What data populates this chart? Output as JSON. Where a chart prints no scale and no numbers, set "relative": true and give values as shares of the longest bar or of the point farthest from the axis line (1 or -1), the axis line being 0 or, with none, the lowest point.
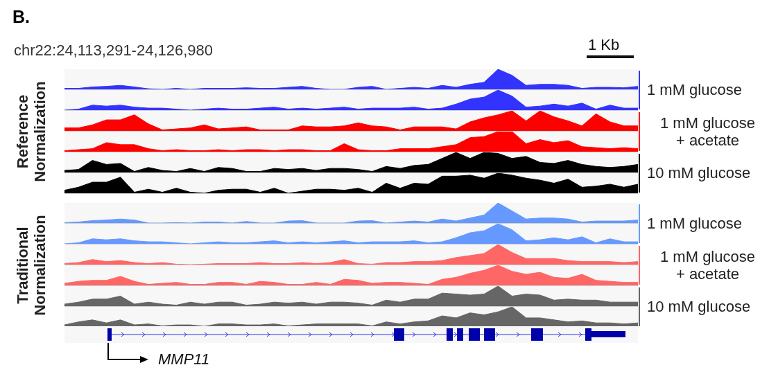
{
  "chart_data": [
    {
      "type": "area",
      "relative": true,
      "title": "B.",
      "subtitle": "chr22:24,113,291-24,126,980",
      "annotations": [
        "1 Kb"
      ],
      "ylabel": "Reference Normalization",
      "legend_title": "1 mM glucose",
      "categories": [
        null,
        null,
        null,
        null,
        null,
        null,
        null,
        null,
        null,
        null,
        null,
        null,
        null,
        null,
        null,
        null,
        null,
        null,
        null,
        null,
        null,
        null,
        null,
        null,
        null,
        null,
        null,
        null,
        null,
        null,
        null,
        null,
        null,
        null,
        null,
        null,
        null,
        null,
        null,
        null,
        null,
        null
      ],
      "series": [
        {
          "color": "#3333ff",
          "values": [
            0.05,
            0.05,
            0.12,
            0.15,
            0.2,
            0.12,
            0.03,
            0,
            0.05,
            0,
            0.05,
            0.05,
            0.05,
            0.08,
            0.05,
            0.05,
            0.1,
            0.15,
            0.05,
            0,
            0,
            0.1,
            0.15,
            0,
            0.05,
            0.1,
            0.05,
            0.2,
            0.1,
            0.25,
            0.35,
            1,
            0.7,
            0.2,
            0.25,
            0.25,
            0.2,
            0.05,
            0.1,
            0.1,
            0.08,
            0.15
          ]
        }
      ]
    },
    {
      "type": "area",
      "relative": true,
      "categories": [
        null,
        null,
        null,
        null,
        null,
        null,
        null,
        null,
        null,
        null,
        null,
        null,
        null,
        null,
        null,
        null,
        null,
        null,
        null,
        null,
        null,
        null,
        null,
        null,
        null,
        null,
        null,
        null,
        null,
        null,
        null,
        null,
        null,
        null,
        null,
        null,
        null,
        null,
        null,
        null,
        null,
        null
      ],
      "series": [
        {
          "color": "#3333ff",
          "values": [
            0,
            0.05,
            0.25,
            0.2,
            0.25,
            0.15,
            0.1,
            0.1,
            0.05,
            0,
            0.05,
            0.1,
            0.05,
            0.05,
            0.1,
            0.15,
            0.05,
            0.1,
            0.05,
            0.1,
            0.15,
            0.05,
            0.1,
            0.1,
            0.1,
            0.15,
            0.05,
            0.1,
            0.3,
            0.55,
            0.65,
            1,
            0.7,
            0.15,
            0.2,
            0.3,
            0.2,
            0.35,
            0.05,
            0.25,
            0.1,
            0.1
          ]
        }
      ]
    },
    {
      "type": "area",
      "relative": true,
      "legend_title": "1 mM glucose + acetate",
      "categories": [
        null,
        null,
        null,
        null,
        null,
        null,
        null,
        null,
        null,
        null,
        null,
        null,
        null,
        null,
        null,
        null,
        null,
        null,
        null,
        null,
        null,
        null,
        null,
        null,
        null,
        null,
        null,
        null,
        null,
        null,
        null,
        null,
        null,
        null,
        null,
        null,
        null,
        null,
        null,
        null,
        null,
        null
      ],
      "series": [
        {
          "color": "#ff0000",
          "values": [
            0.15,
            0.15,
            0.3,
            0.55,
            0.55,
            0.8,
            0.35,
            0.05,
            0.1,
            0.15,
            0.3,
            0.1,
            0.15,
            0.2,
            0.05,
            0.05,
            0.05,
            0.25,
            0.2,
            0.2,
            0.25,
            0.4,
            0.25,
            0.2,
            0.05,
            0.2,
            0.2,
            0.2,
            0.1,
            0.45,
            0.65,
            0.8,
            1,
            0.5,
            1,
            0.7,
            0.5,
            0.25,
            0.85,
            0.45,
            0.25,
            0.25
          ]
        }
      ]
    },
    {
      "type": "area",
      "relative": true,
      "categories": [
        null,
        null,
        null,
        null,
        null,
        null,
        null,
        null,
        null,
        null,
        null,
        null,
        null,
        null,
        null,
        null,
        null,
        null,
        null,
        null,
        null,
        null,
        null,
        null,
        null,
        null,
        null,
        null,
        null,
        null,
        null,
        null,
        null,
        null,
        null,
        null,
        null,
        null,
        null,
        null,
        null,
        null
      ],
      "series": [
        {
          "color": "#ff0000",
          "values": [
            0.05,
            0.1,
            0.15,
            0.45,
            0.35,
            0.35,
            0.15,
            0.05,
            0.1,
            0.05,
            0.05,
            0.1,
            0.05,
            0.1,
            0.1,
            0.05,
            0.1,
            0.1,
            0.05,
            0.05,
            0.4,
            0.1,
            0.05,
            0.05,
            0.15,
            0.15,
            0.15,
            0.25,
            0.35,
            0.7,
            0.75,
            1,
            1,
            0.4,
            0.6,
            0.45,
            0.55,
            0.25,
            0.2,
            0.15,
            0.2,
            0.15
          ]
        }
      ]
    },
    {
      "type": "area",
      "relative": true,
      "legend_title": "10 mM glucose",
      "categories": [
        null,
        null,
        null,
        null,
        null,
        null,
        null,
        null,
        null,
        null,
        null,
        null,
        null,
        null,
        null,
        null,
        null,
        null,
        null,
        null,
        null,
        null,
        null,
        null,
        null,
        null,
        null,
        null,
        null,
        null,
        null,
        null,
        null,
        null,
        null,
        null,
        null,
        null,
        null,
        null,
        null,
        null
      ],
      "series": [
        {
          "color": "#000000",
          "values": [
            0.1,
            0.15,
            0.6,
            0.4,
            0.45,
            0.05,
            0.25,
            0.1,
            0.05,
            0.2,
            0.05,
            0.25,
            0.2,
            0.05,
            0.05,
            0.2,
            0.15,
            0.2,
            0.1,
            0.2,
            0.2,
            0.15,
            0.05,
            0.3,
            0.2,
            0.35,
            0.4,
            0.7,
            1,
            0.7,
            1,
            0.95,
            0.7,
            0.8,
            0.5,
            0.45,
            0.6,
            0.4,
            0.3,
            0.25,
            0.3,
            0.4
          ]
        }
      ]
    },
    {
      "type": "area",
      "relative": true,
      "categories": [
        null,
        null,
        null,
        null,
        null,
        null,
        null,
        null,
        null,
        null,
        null,
        null,
        null,
        null,
        null,
        null,
        null,
        null,
        null,
        null,
        null,
        null,
        null,
        null,
        null,
        null,
        null,
        null,
        null,
        null,
        null,
        null,
        null,
        null,
        null,
        null,
        null,
        null,
        null,
        null,
        null,
        null
      ],
      "series": [
        {
          "color": "#000000",
          "values": [
            0.15,
            0.3,
            0.55,
            0.55,
            0.8,
            0.05,
            0.2,
            0.05,
            0.25,
            0.05,
            0,
            0.15,
            0.2,
            0.2,
            0.05,
            0.25,
            0,
            0.1,
            0.2,
            0.2,
            0.15,
            0.25,
            0.05,
            0.5,
            0.25,
            0.5,
            0.45,
            0.85,
            0.85,
            0.9,
            0.75,
            1,
            0.9,
            0.75,
            0.65,
            0.5,
            0.7,
            0.3,
            0.35,
            0.45,
            0.3,
            0.45
          ]
        }
      ]
    },
    {
      "type": "area",
      "relative": true,
      "ylabel": "Traditional Normalization",
      "legend_title": "1 mM glucose",
      "categories": [
        null,
        null,
        null,
        null,
        null,
        null,
        null,
        null,
        null,
        null,
        null,
        null,
        null,
        null,
        null,
        null,
        null,
        null,
        null,
        null,
        null,
        null,
        null,
        null,
        null,
        null,
        null,
        null,
        null,
        null,
        null,
        null,
        null,
        null,
        null,
        null,
        null,
        null,
        null,
        null,
        null,
        null
      ],
      "series": [
        {
          "color": "#6699ff",
          "values": [
            0.02,
            0.05,
            0.12,
            0.15,
            0.2,
            0.15,
            0,
            0,
            0.02,
            0,
            0.05,
            0.05,
            0,
            0.08,
            0,
            0,
            0.1,
            0.12,
            0,
            0,
            0,
            0.1,
            0.12,
            0,
            0.05,
            0.1,
            0.05,
            0.2,
            0.1,
            0.25,
            0.4,
            1,
            0.6,
            0.2,
            0.25,
            0.25,
            0.2,
            0.05,
            0.1,
            0.1,
            0.1,
            0.15
          ]
        }
      ]
    },
    {
      "type": "area",
      "relative": true,
      "categories": [
        null,
        null,
        null,
        null,
        null,
        null,
        null,
        null,
        null,
        null,
        null,
        null,
        null,
        null,
        null,
        null,
        null,
        null,
        null,
        null,
        null,
        null,
        null,
        null,
        null,
        null,
        null,
        null,
        null,
        null,
        null,
        null,
        null,
        null,
        null,
        null,
        null,
        null,
        null,
        null,
        null,
        null
      ],
      "series": [
        {
          "color": "#6699ff",
          "values": [
            0,
            0.05,
            0.25,
            0.2,
            0.25,
            0.15,
            0.1,
            0.1,
            0.05,
            0,
            0.05,
            0.1,
            0.05,
            0.05,
            0.1,
            0.15,
            0.05,
            0.1,
            0.05,
            0.1,
            0.15,
            0.05,
            0.1,
            0.1,
            0.1,
            0.15,
            0.05,
            0.1,
            0.3,
            0.55,
            0.65,
            1,
            0.7,
            0.15,
            0.2,
            0.3,
            0.2,
            0.35,
            0.05,
            0.25,
            0.1,
            0.1
          ]
        }
      ]
    },
    {
      "type": "area",
      "relative": true,
      "legend_title": "1 mM glucose + acetate",
      "categories": [
        null,
        null,
        null,
        null,
        null,
        null,
        null,
        null,
        null,
        null,
        null,
        null,
        null,
        null,
        null,
        null,
        null,
        null,
        null,
        null,
        null,
        null,
        null,
        null,
        null,
        null,
        null,
        null,
        null,
        null,
        null,
        null,
        null,
        null,
        null,
        null,
        null,
        null,
        null,
        null,
        null,
        null
      ],
      "series": [
        {
          "color": "#ff6666",
          "values": [
            0.05,
            0.1,
            0.25,
            0.15,
            0.2,
            0.1,
            0.05,
            0.1,
            0.02,
            0,
            0.02,
            0.05,
            0.05,
            0.05,
            0.1,
            0.05,
            0.05,
            0.1,
            0.05,
            0.1,
            0.25,
            0.05,
            0.02,
            0.1,
            0.1,
            0.15,
            0.15,
            0.2,
            0.35,
            0.45,
            0.55,
            1,
            0.6,
            0.3,
            0.3,
            0.3,
            0.2,
            0.15,
            0.15,
            0.15,
            0.1,
            0.15
          ]
        }
      ]
    },
    {
      "type": "area",
      "relative": true,
      "categories": [
        null,
        null,
        null,
        null,
        null,
        null,
        null,
        null,
        null,
        null,
        null,
        null,
        null,
        null,
        null,
        null,
        null,
        null,
        null,
        null,
        null,
        null,
        null,
        null,
        null,
        null,
        null,
        null,
        null,
        null,
        null,
        null,
        null,
        null,
        null,
        null,
        null,
        null,
        null,
        null,
        null,
        null
      ],
      "series": [
        {
          "color": "#ff6666",
          "values": [
            0.1,
            0.2,
            0.25,
            0.25,
            0.45,
            0.2,
            0.05,
            0.1,
            0.15,
            0.05,
            0.05,
            0.15,
            0.15,
            0.05,
            0.2,
            0.15,
            0.05,
            0.05,
            0.15,
            0.05,
            0.3,
            0.25,
            0.1,
            0.15,
            0.15,
            0.1,
            0.05,
            0.3,
            0.4,
            0.6,
            0.75,
            1,
            0.7,
            0.55,
            0.65,
            0.4,
            0.35,
            0.55,
            0.25,
            0.2,
            0.15,
            0.15
          ]
        }
      ]
    },
    {
      "type": "area",
      "relative": true,
      "legend_title": "10 mM glucose",
      "categories": [
        null,
        null,
        null,
        null,
        null,
        null,
        null,
        null,
        null,
        null,
        null,
        null,
        null,
        null,
        null,
        null,
        null,
        null,
        null,
        null,
        null,
        null,
        null,
        null,
        null,
        null,
        null,
        null,
        null,
        null,
        null,
        null,
        null,
        null,
        null,
        null,
        null,
        null,
        null,
        null,
        null,
        null
      ],
      "series": [
        {
          "color": "#666666",
          "values": [
            0.1,
            0.2,
            0.35,
            0.35,
            0.5,
            0.1,
            0.2,
            0.1,
            0.05,
            0.2,
            0.1,
            0.2,
            0.2,
            0.05,
            0.1,
            0.2,
            0.15,
            0.2,
            0.1,
            0.2,
            0.2,
            0.15,
            0.05,
            0.3,
            0.2,
            0.35,
            0.35,
            0.65,
            0.6,
            0.55,
            0.6,
            1,
            0.5,
            0.6,
            0.55,
            0.3,
            0.35,
            0.3,
            0.3,
            0.2,
            0.2,
            0.2
          ]
        }
      ]
    },
    {
      "type": "area",
      "relative": true,
      "annotations": [
        "MMP11"
      ],
      "categories": [
        null,
        null,
        null,
        null,
        null,
        null,
        null,
        null,
        null,
        null,
        null,
        null,
        null,
        null,
        null,
        null,
        null,
        null,
        null,
        null,
        null,
        null,
        null,
        null,
        null,
        null,
        null,
        null,
        null,
        null,
        null,
        null,
        null,
        null,
        null,
        null,
        null,
        null,
        null,
        null,
        null,
        null
      ],
      "series": [
        {
          "color": "#666666",
          "values": [
            0.1,
            0.25,
            0.35,
            0.2,
            0.35,
            0.1,
            0.15,
            0.05,
            0.1,
            0.1,
            0.03,
            0.15,
            0.15,
            0.1,
            0.1,
            0.15,
            0.05,
            0.1,
            0.15,
            0.15,
            0.15,
            0.15,
            0.05,
            0.25,
            0.15,
            0.25,
            0.3,
            0.55,
            0.45,
            0.7,
            0.6,
            0.75,
            1,
            0.45,
            0.45,
            0.35,
            0.25,
            0.3,
            0.2,
            0.2,
            0.15,
            0.2
          ]
        }
      ]
    }
  ]
}
